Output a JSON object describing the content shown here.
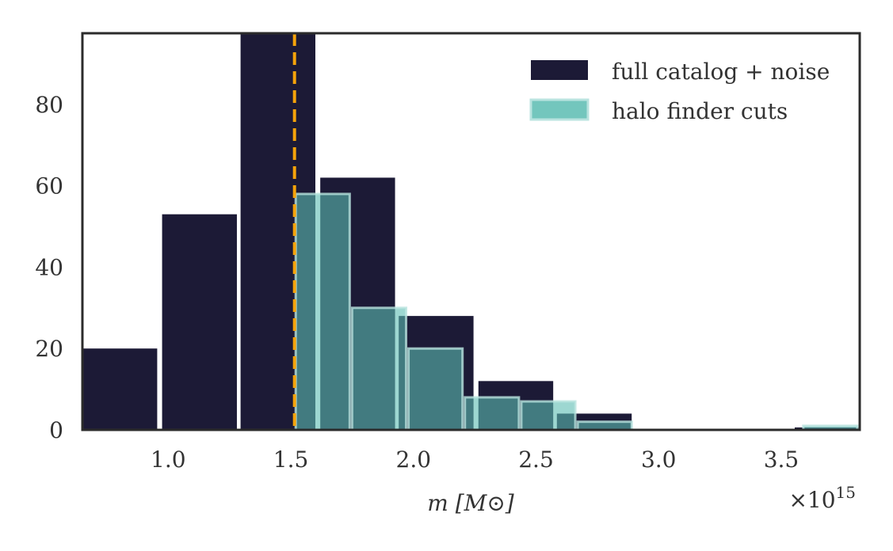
{
  "chart_data": {
    "type": "bar",
    "title": "",
    "xlabel": "m [M⊙]",
    "ylabel": "",
    "x_scale_label": "×10",
    "x_scale_exponent": "15",
    "xlim": [
      0.65,
      3.82
    ],
    "ylim": [
      0,
      97.5
    ],
    "x_ticks": [
      1.0,
      1.5,
      2.0,
      2.5,
      3.0,
      3.5
    ],
    "x_tick_labels": [
      "1.0",
      "1.5",
      "2.0",
      "2.5",
      "3.0",
      "3.5"
    ],
    "y_ticks": [
      0,
      20,
      40,
      60,
      80
    ],
    "y_tick_labels": [
      "0",
      "20",
      "40",
      "60",
      "80"
    ],
    "grid": false,
    "legend_position": "top-right",
    "threshold_line": {
      "x": 1.515,
      "color": "#f5a30a",
      "style": "dashed"
    },
    "series": [
      {
        "name": "full catalog + noise",
        "color": "#1c1a36",
        "bins": [
          {
            "x0": 0.65,
            "x1": 0.955,
            "count": 20
          },
          {
            "x0": 0.975,
            "x1": 1.28,
            "count": 53
          },
          {
            "x0": 1.295,
            "x1": 1.6,
            "count": 97.5
          },
          {
            "x0": 1.62,
            "x1": 1.925,
            "count": 62
          },
          {
            "x0": 1.94,
            "x1": 2.245,
            "count": 28
          },
          {
            "x0": 2.265,
            "x1": 2.57,
            "count": 12
          },
          {
            "x0": 2.585,
            "x1": 2.89,
            "count": 4
          },
          {
            "x0": 3.555,
            "x1": 3.82,
            "count": 0.6
          }
        ]
      },
      {
        "name": "halo finder cuts",
        "color": "#5bbcb2",
        "bins": [
          {
            "x0": 1.515,
            "x1": 1.745,
            "count": 58
          },
          {
            "x0": 1.745,
            "x1": 1.975,
            "count": 30
          },
          {
            "x0": 1.975,
            "x1": 2.205,
            "count": 20
          },
          {
            "x0": 2.205,
            "x1": 2.435,
            "count": 8
          },
          {
            "x0": 2.435,
            "x1": 2.665,
            "count": 7
          },
          {
            "x0": 2.665,
            "x1": 2.895,
            "count": 2
          },
          {
            "x0": 2.895,
            "x1": 3.125,
            "count": 0
          },
          {
            "x0": 3.125,
            "x1": 3.355,
            "count": 0
          },
          {
            "x0": 3.355,
            "x1": 3.585,
            "count": 0
          },
          {
            "x0": 3.585,
            "x1": 3.815,
            "count": 1
          }
        ]
      }
    ]
  }
}
